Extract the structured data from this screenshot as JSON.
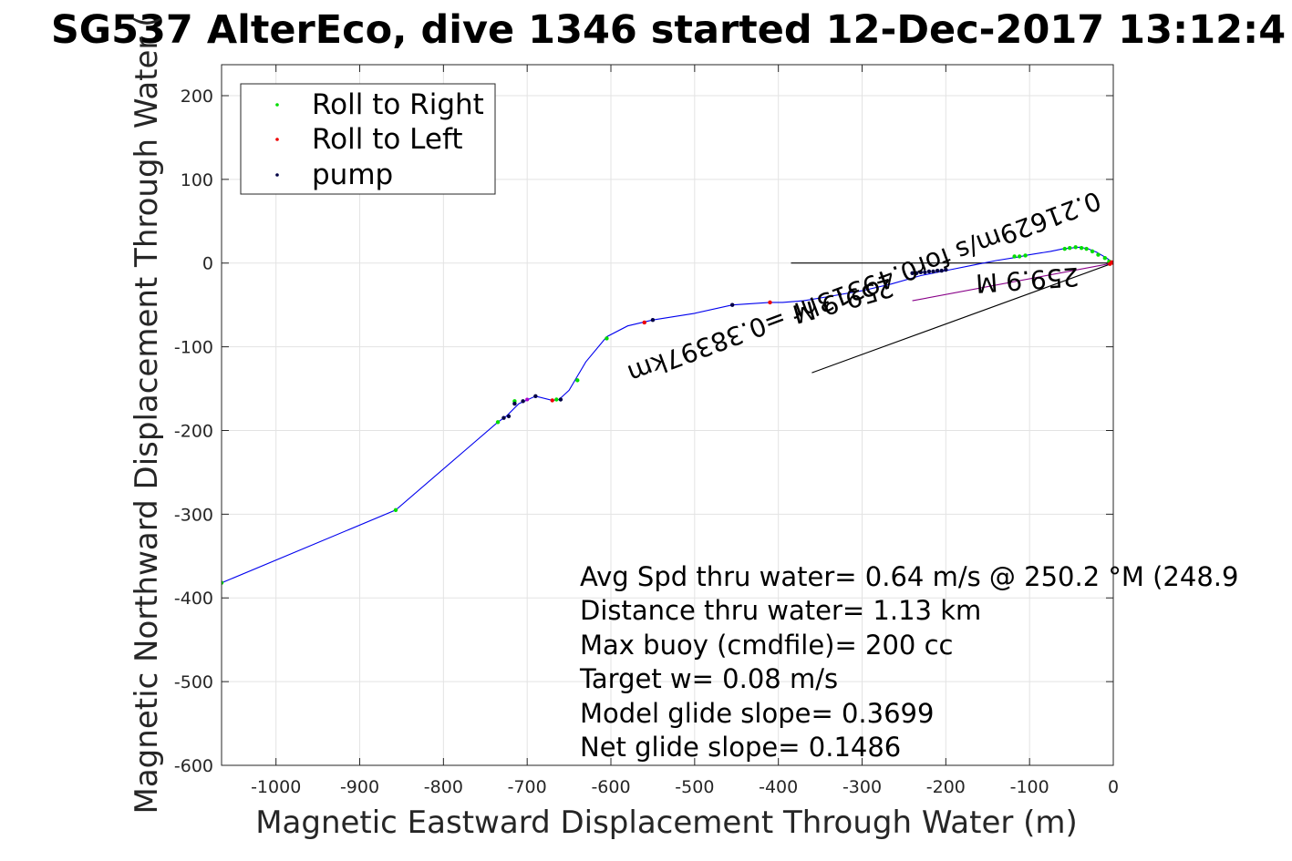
{
  "chart_data": {
    "type": "line",
    "title": "SG537 AlterEco, dive 1346 started 12-Dec-2017 13:12:4",
    "xlabel": "Magnetic Eastward Displacement Through Water (m)",
    "ylabel": "Magnetic Northward Displacement Through Water (",
    "xlim": [
      -1065,
      0
    ],
    "ylim": [
      -600,
      237
    ],
    "xticks": [
      -1000,
      -900,
      -800,
      -700,
      -600,
      -500,
      -400,
      -300,
      -200,
      -100,
      0
    ],
    "yticks": [
      -600,
      -500,
      -400,
      -300,
      -200,
      -100,
      0,
      100,
      200
    ],
    "xtick_labels": [
      "-1000",
      "-900",
      "-800",
      "-700",
      "-600",
      "-500",
      "-400",
      "-300",
      "-200",
      "-100",
      "0"
    ],
    "ytick_labels": [
      "-600",
      "-500",
      "-400",
      "-300",
      "-200",
      "-100",
      "0",
      "100",
      "200"
    ],
    "grid": true,
    "legend_position": "top-left",
    "legend": [
      {
        "label": "Roll to Right",
        "color": "#00dd00"
      },
      {
        "label": "Roll to Left",
        "color": "#ee0000"
      },
      {
        "label": "pump",
        "color": "#000044"
      }
    ],
    "track": {
      "color": "#0000ee",
      "x": [
        0,
        -8,
        -20,
        -30,
        -40,
        -50,
        -60,
        -75,
        -100,
        -115,
        -140,
        -165,
        -200,
        -230,
        -265,
        -300,
        -340,
        -370,
        -395,
        -410,
        -455,
        -500,
        -550,
        -580,
        -605,
        -630,
        -650,
        -662,
        -670,
        -690,
        -710,
        -725,
        -735,
        -857,
        -1065
      ],
      "y": [
        0,
        6,
        13,
        17,
        19,
        18,
        17,
        14,
        10,
        7,
        3,
        -2,
        -9,
        -15,
        -25,
        -33,
        -40,
        -45,
        -47,
        -47,
        -50,
        -60,
        -68,
        -75,
        -88,
        -118,
        -152,
        -163,
        -164,
        -159,
        -168,
        -183,
        -190,
        -295,
        -382
      ]
    },
    "roll_right": {
      "color": "#00dd00",
      "x": [
        -5,
        -10,
        -18,
        -25,
        -32,
        -38,
        -45,
        -52,
        -58,
        -105,
        -112,
        -118,
        -605,
        -640,
        -665,
        -715,
        -735,
        -857,
        -1065
      ],
      "y": [
        2,
        6,
        10,
        14,
        17,
        18,
        19,
        18,
        17,
        9,
        8,
        8,
        -90,
        -140,
        -163,
        -165,
        -190,
        -295,
        -382
      ]
    },
    "roll_left": {
      "color": "#ee0000",
      "x": [
        0,
        -2,
        -4,
        -410,
        -560,
        -670
      ],
      "y": [
        0,
        1,
        -1,
        -47,
        -71,
        -164
      ]
    },
    "pump": {
      "color": "#000044",
      "x": [
        -200,
        -205,
        -210,
        -215,
        -220,
        -225,
        -230,
        -235,
        -240,
        -455,
        -550,
        -660,
        -690,
        -705,
        -715,
        -722,
        -728
      ],
      "y": [
        -8,
        -9,
        -9,
        -10,
        -10,
        -11,
        -11,
        -12,
        -12,
        -50,
        -68,
        -163,
        -159,
        -165,
        -168,
        -183,
        -185
      ]
    },
    "purple_marks": {
      "color": "#aa00cc",
      "x": [
        -455,
        -560,
        -700,
        -410
      ],
      "y": [
        -50,
        -71,
        -163,
        -47
      ]
    },
    "current_line": {
      "color": "#000000",
      "x": [
        -385,
        0
      ],
      "y": [
        0,
        0
      ]
    },
    "heading_lines": [
      {
        "color": "#000000",
        "x": [
          -360,
          0
        ],
        "y": [
          -131,
          0
        ]
      },
      {
        "color": "#880088",
        "x": [
          -240,
          0
        ],
        "y": [
          -45,
          0
        ]
      }
    ],
    "annotations": [
      {
        "text": "0.21629m/s for0.49313hr =0.38397km",
        "anchor_x": -582,
        "anchor_y": -124,
        "rotation_deg": 159.5
      },
      {
        "text": "259.9 M",
        "anchor_x": -385,
        "anchor_y": -52,
        "rotation_deg": 164
      },
      {
        "text": "259.9 M",
        "anchor_x": -165,
        "anchor_y": -14,
        "rotation_deg": 176
      }
    ],
    "stats": [
      "Avg Spd thru water=  0.64 m/s @ 250.2 °M (248.9",
      "Distance thru water=  1.13 km",
      "Max buoy (cmdfile)= 200 cc",
      "Target w= 0.08 m/s",
      "Model glide slope= 0.3699",
      "Net glide slope= 0.1486"
    ]
  }
}
